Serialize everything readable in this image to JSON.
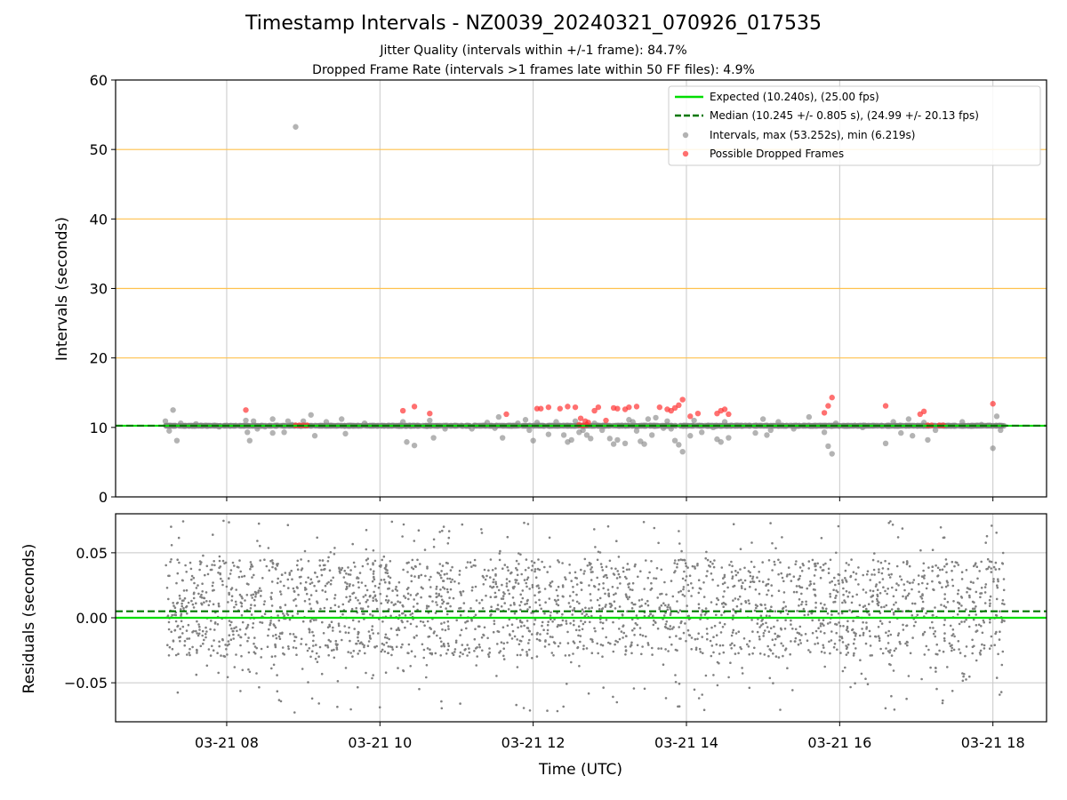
{
  "titles": {
    "main": "Timestamp Intervals - NZ0039_20240321_070926_017535",
    "jitter": "Jitter Quality (intervals within +/-1 frame): 84.7%",
    "dropped": "Dropped Frame Rate (intervals >1 frames late within 50 FF files): 4.9%"
  },
  "colors": {
    "expected": "#00dd00",
    "median": "#007700",
    "intervals": "#808080",
    "dropped": "#ff3333",
    "threshold": "#ffc14d",
    "grid": "#c8c8c8"
  },
  "chart_data": [
    {
      "type": "scatter",
      "name": "intervals-panel",
      "ylabel": "Intervals (seconds)",
      "ylim": [
        0,
        60
      ],
      "yticks": [
        "0",
        "10",
        "20",
        "30",
        "40",
        "50",
        "60"
      ],
      "xlim_hours": [
        6.55,
        18.7
      ],
      "grid": "vertical",
      "threshold_lines": [
        20,
        30,
        40,
        50
      ],
      "expected_value": 10.24,
      "median_value": 10.245,
      "legend_placement": "top-right",
      "legend": [
        "Expected (10.240s), (25.00 fps)",
        "Median (10.245 +/- 0.805 s), (24.99 +/- 20.13 fps)",
        "Intervals, max (53.252s), min (6.219s)",
        "Possible Dropped Frames"
      ],
      "dense_band": {
        "x_start": 7.2,
        "x_end": 18.15,
        "y": 10.24
      },
      "intervals": [
        [
          7.2,
          10.9
        ],
        [
          7.25,
          9.5
        ],
        [
          7.3,
          12.5
        ],
        [
          7.35,
          8.1
        ],
        [
          7.4,
          10.6
        ],
        [
          7.6,
          10.5
        ],
        [
          7.9,
          10.1
        ],
        [
          8.25,
          11.0
        ],
        [
          8.27,
          9.3
        ],
        [
          8.3,
          8.1
        ],
        [
          8.35,
          10.9
        ],
        [
          8.4,
          9.8
        ],
        [
          8.5,
          10.1
        ],
        [
          8.6,
          11.2
        ],
        [
          8.6,
          9.2
        ],
        [
          8.75,
          9.3
        ],
        [
          8.8,
          10.9
        ],
        [
          8.85,
          10.4
        ],
        [
          9.0,
          10.9
        ],
        [
          9.1,
          11.8
        ],
        [
          9.15,
          8.8
        ],
        [
          9.3,
          10.8
        ],
        [
          9.5,
          11.2
        ],
        [
          9.55,
          9.1
        ],
        [
          9.8,
          10.6
        ],
        [
          10.3,
          10.8
        ],
        [
          10.35,
          7.9
        ],
        [
          10.45,
          7.4
        ],
        [
          10.65,
          11.0
        ],
        [
          10.7,
          8.5
        ],
        [
          10.85,
          9.8
        ],
        [
          11.2,
          9.8
        ],
        [
          11.4,
          10.7
        ],
        [
          11.5,
          9.9
        ],
        [
          11.55,
          11.5
        ],
        [
          11.6,
          8.5
        ],
        [
          11.8,
          10.6
        ],
        [
          11.9,
          11.1
        ],
        [
          11.95,
          9.6
        ],
        [
          12.0,
          8.1
        ],
        [
          12.05,
          10.7
        ],
        [
          12.2,
          9.0
        ],
        [
          12.3,
          10.8
        ],
        [
          12.4,
          8.9
        ],
        [
          12.45,
          7.9
        ],
        [
          12.5,
          8.2
        ],
        [
          12.55,
          10.9
        ],
        [
          12.6,
          9.3
        ],
        [
          12.65,
          9.6
        ],
        [
          12.7,
          8.9
        ],
        [
          12.75,
          8.4
        ],
        [
          12.8,
          10.6
        ],
        [
          12.9,
          9.6
        ],
        [
          13.0,
          8.4
        ],
        [
          13.05,
          7.6
        ],
        [
          13.1,
          8.2
        ],
        [
          13.2,
          7.7
        ],
        [
          13.25,
          11.1
        ],
        [
          13.3,
          10.8
        ],
        [
          13.35,
          9.5
        ],
        [
          13.4,
          8.0
        ],
        [
          13.45,
          7.6
        ],
        [
          13.5,
          11.2
        ],
        [
          13.55,
          8.9
        ],
        [
          13.6,
          11.4
        ],
        [
          13.7,
          9.9
        ],
        [
          13.75,
          10.9
        ],
        [
          13.8,
          9.8
        ],
        [
          13.85,
          8.1
        ],
        [
          13.9,
          7.5
        ],
        [
          13.95,
          6.5
        ],
        [
          14.0,
          10.2
        ],
        [
          14.05,
          8.8
        ],
        [
          14.1,
          11.0
        ],
        [
          14.2,
          9.3
        ],
        [
          14.35,
          10.0
        ],
        [
          14.4,
          8.3
        ],
        [
          14.45,
          7.9
        ],
        [
          14.5,
          10.8
        ],
        [
          14.55,
          8.5
        ],
        [
          14.9,
          9.2
        ],
        [
          15.0,
          11.2
        ],
        [
          15.05,
          8.9
        ],
        [
          15.1,
          9.6
        ],
        [
          15.2,
          10.8
        ],
        [
          15.4,
          9.8
        ],
        [
          15.6,
          11.5
        ],
        [
          15.8,
          9.3
        ],
        [
          15.85,
          7.3
        ],
        [
          15.9,
          6.2
        ],
        [
          15.95,
          10.6
        ],
        [
          16.1,
          10.2
        ],
        [
          16.3,
          10.0
        ],
        [
          16.6,
          7.7
        ],
        [
          16.7,
          10.8
        ],
        [
          16.8,
          9.2
        ],
        [
          16.9,
          11.2
        ],
        [
          16.95,
          8.8
        ],
        [
          17.1,
          10.7
        ],
        [
          17.15,
          8.2
        ],
        [
          17.25,
          9.6
        ],
        [
          17.5,
          10.2
        ],
        [
          17.6,
          10.8
        ],
        [
          17.85,
          10.4
        ],
        [
          18.0,
          7.0
        ],
        [
          18.05,
          11.6
        ],
        [
          18.1,
          9.6
        ],
        [
          8.9,
          53.252
        ]
      ],
      "dropped": [
        [
          8.25,
          12.5
        ],
        [
          8.9,
          10.3
        ],
        [
          8.95,
          10.3
        ],
        [
          9.0,
          10.3
        ],
        [
          9.05,
          10.3
        ],
        [
          10.3,
          12.4
        ],
        [
          10.45,
          13.0
        ],
        [
          10.65,
          12.0
        ],
        [
          11.65,
          11.9
        ],
        [
          12.05,
          12.7
        ],
        [
          12.1,
          12.7
        ],
        [
          12.2,
          12.9
        ],
        [
          12.35,
          12.7
        ],
        [
          12.45,
          13.0
        ],
        [
          12.55,
          12.9
        ],
        [
          12.6,
          10.4
        ],
        [
          12.62,
          11.3
        ],
        [
          12.65,
          10.3
        ],
        [
          12.68,
          10.9
        ],
        [
          12.7,
          10.4
        ],
        [
          12.72,
          10.7
        ],
        [
          12.8,
          12.4
        ],
        [
          12.85,
          12.9
        ],
        [
          12.95,
          11.0
        ],
        [
          13.05,
          12.8
        ],
        [
          13.1,
          12.7
        ],
        [
          13.2,
          12.6
        ],
        [
          13.25,
          12.9
        ],
        [
          13.35,
          13.0
        ],
        [
          13.65,
          12.9
        ],
        [
          13.75,
          12.6
        ],
        [
          13.8,
          12.4
        ],
        [
          13.85,
          12.8
        ],
        [
          13.9,
          13.2
        ],
        [
          13.95,
          14.0
        ],
        [
          14.05,
          11.6
        ],
        [
          14.15,
          12.0
        ],
        [
          14.4,
          12.0
        ],
        [
          14.45,
          12.4
        ],
        [
          14.5,
          12.6
        ],
        [
          14.55,
          11.9
        ],
        [
          15.8,
          12.1
        ],
        [
          15.85,
          13.1
        ],
        [
          15.9,
          14.3
        ],
        [
          16.6,
          13.1
        ],
        [
          17.05,
          11.9
        ],
        [
          17.1,
          12.3
        ],
        [
          17.15,
          10.3
        ],
        [
          17.2,
          10.3
        ],
        [
          17.3,
          10.3
        ],
        [
          17.35,
          10.3
        ],
        [
          18.0,
          13.4
        ]
      ]
    },
    {
      "type": "scatter",
      "name": "residuals-panel",
      "ylabel": "Residuals (seconds)",
      "xlabel": "Time (UTC)",
      "ylim": [
        -0.08,
        0.08
      ],
      "yticks": [
        "0.05",
        "0.00",
        "−0.05"
      ],
      "xticks": [
        "03-21 08",
        "03-21 10",
        "03-21 12",
        "03-21 14",
        "03-21 16",
        "03-21 18"
      ],
      "xtick_hours": [
        8,
        10,
        12,
        14,
        16,
        18
      ],
      "grid": "both",
      "expected_value": 0.0,
      "median_value": 0.005,
      "x_range_hours": [
        7.2,
        18.15
      ],
      "residual_range": [
        -0.073,
        0.075
      ],
      "dense_band": [
        -0.03,
        0.045
      ]
    }
  ]
}
